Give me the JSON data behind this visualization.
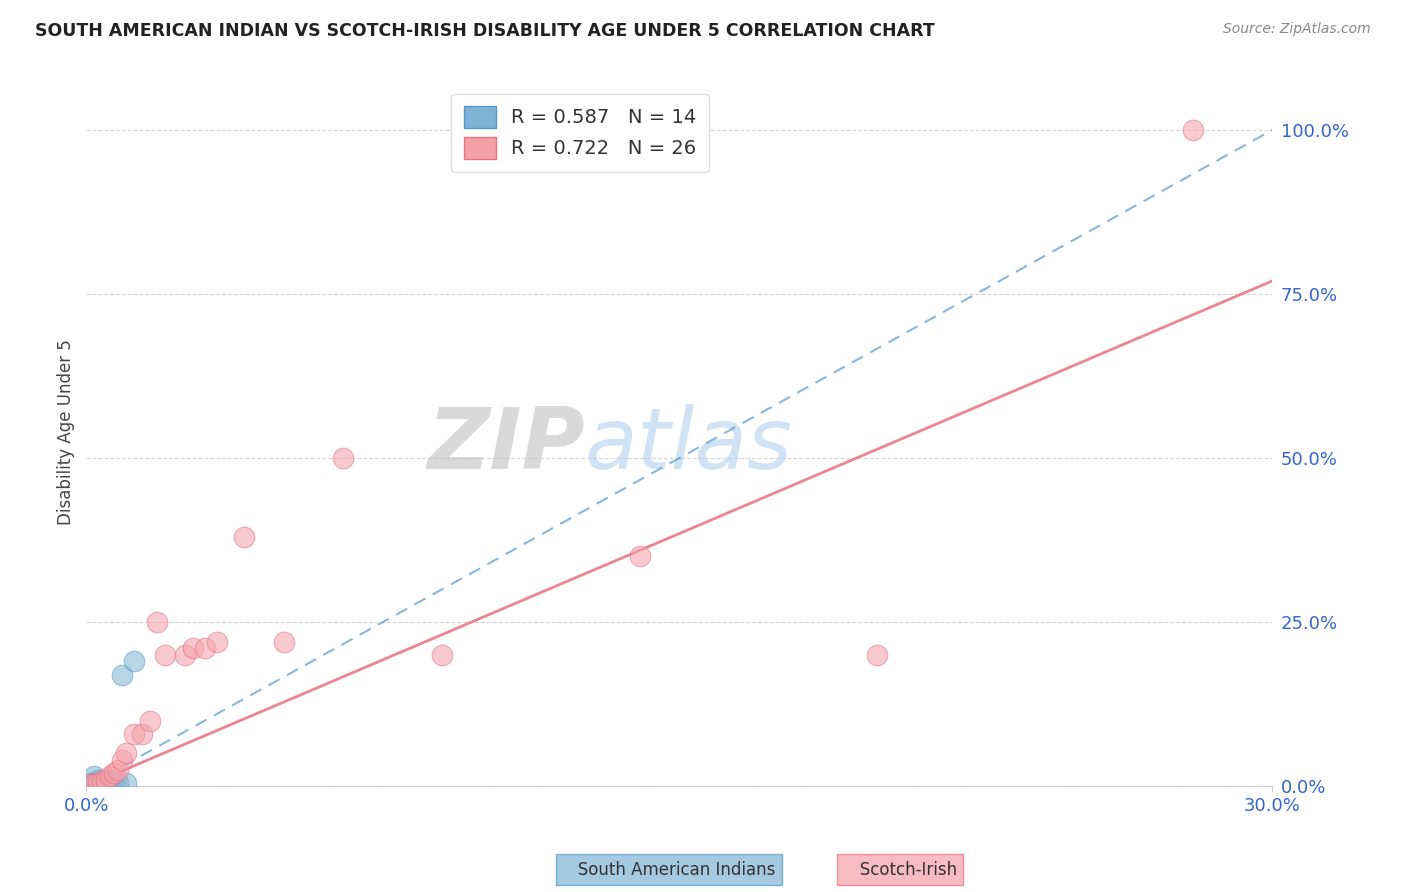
{
  "title": "SOUTH AMERICAN INDIAN VS SCOTCH-IRISH DISABILITY AGE UNDER 5 CORRELATION CHART",
  "source": "Source: ZipAtlas.com",
  "ylabel": "Disability Age Under 5",
  "xlim": [
    0.0,
    0.3
  ],
  "ylim": [
    0.0,
    1.08
  ],
  "ytick_values": [
    0.0,
    0.25,
    0.5,
    0.75,
    1.0
  ],
  "ytick_labels": [
    "0.0%",
    "25.0%",
    "50.0%",
    "75.0%",
    "100.0%"
  ],
  "xtick_values": [
    0.0,
    0.3
  ],
  "xtick_labels": [
    "0.0%",
    "30.0%"
  ],
  "legend_line1": "R = 0.587   N = 14",
  "legend_line2": "R = 0.722   N = 26",
  "color_blue": "#7FB3D3",
  "color_pink": "#F4A0A8",
  "color_blue_dark": "#5599CC",
  "color_pink_dark": "#E87080",
  "color_text_blue": "#3366CC",
  "watermark_zip": "ZIP",
  "watermark_atlas": "atlas",
  "south_american_x": [
    0.001,
    0.002,
    0.002,
    0.003,
    0.003,
    0.004,
    0.004,
    0.005,
    0.006,
    0.007,
    0.008,
    0.009,
    0.01,
    0.012
  ],
  "south_american_y": [
    0.005,
    0.005,
    0.015,
    0.005,
    0.01,
    0.005,
    0.005,
    0.005,
    0.005,
    0.005,
    0.005,
    0.17,
    0.005,
    0.19
  ],
  "scotch_irish_x": [
    0.001,
    0.002,
    0.003,
    0.004,
    0.005,
    0.006,
    0.007,
    0.008,
    0.009,
    0.01,
    0.012,
    0.014,
    0.016,
    0.018,
    0.02,
    0.025,
    0.027,
    0.03,
    0.033,
    0.04,
    0.05,
    0.065,
    0.09,
    0.14,
    0.2,
    0.28
  ],
  "scotch_irish_y": [
    0.003,
    0.003,
    0.005,
    0.008,
    0.01,
    0.015,
    0.02,
    0.025,
    0.04,
    0.05,
    0.08,
    0.08,
    0.1,
    0.25,
    0.2,
    0.2,
    0.21,
    0.21,
    0.22,
    0.38,
    0.22,
    0.5,
    0.2,
    0.35,
    0.2,
    1.0
  ],
  "blue_line_x": [
    0.0,
    0.3
  ],
  "blue_line_y": [
    0.0,
    1.0
  ],
  "pink_line_x": [
    0.0,
    0.3
  ],
  "pink_line_y": [
    0.0,
    0.77
  ],
  "grid_color": "#CCCCCC",
  "spine_color": "#CCCCCC"
}
